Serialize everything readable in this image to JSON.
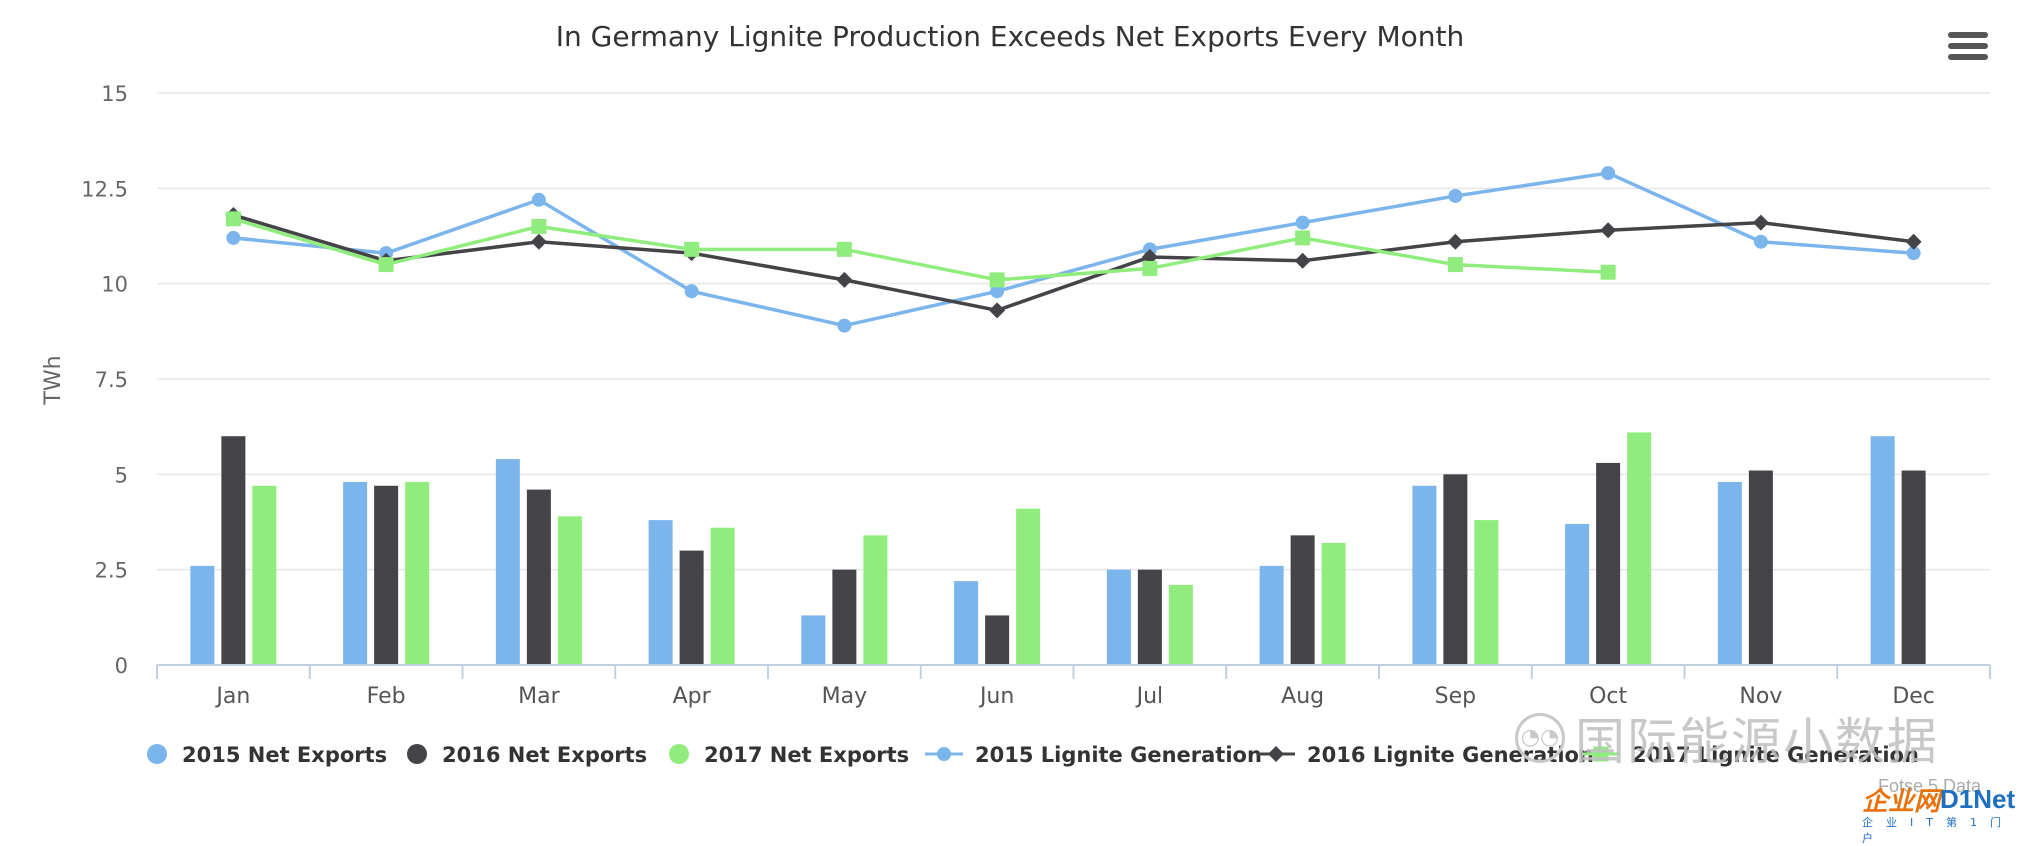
{
  "chart_data": {
    "type": "bar",
    "title": "In Germany Lignite Production Exceeds Net Exports Every Month",
    "xlabel": "",
    "ylabel": "TWh",
    "ylim": [
      0,
      15
    ],
    "yticks": [
      "0",
      "2.5",
      "5",
      "7.5",
      "10",
      "12.5",
      "15"
    ],
    "ytick_values": [
      0,
      2.5,
      5,
      7.5,
      10,
      12.5,
      15
    ],
    "categories": [
      "Jan",
      "Feb",
      "Mar",
      "Apr",
      "May",
      "Jun",
      "Jul",
      "Aug",
      "Sep",
      "Oct",
      "Nov",
      "Dec"
    ],
    "grid": true,
    "legend_position": "bottom",
    "series": [
      {
        "name": "2015 Net Exports",
        "type": "bar",
        "color": "#7cb5ec",
        "values": [
          2.6,
          4.8,
          5.4,
          3.8,
          1.3,
          2.2,
          2.5,
          2.6,
          4.7,
          3.7,
          4.8,
          6.0
        ]
      },
      {
        "name": "2016 Net Exports",
        "type": "bar",
        "color": "#434348",
        "values": [
          6.0,
          4.7,
          4.6,
          3.0,
          2.5,
          1.3,
          2.5,
          3.4,
          5.0,
          5.3,
          5.1,
          5.1
        ]
      },
      {
        "name": "2017 Net Exports",
        "type": "bar",
        "color": "#90ed7d",
        "values": [
          4.7,
          4.8,
          3.9,
          3.6,
          3.4,
          4.1,
          2.1,
          3.2,
          3.8,
          6.1,
          null,
          null
        ]
      },
      {
        "name": "2015 Lignite Generation",
        "type": "line",
        "marker": "circle",
        "color": "#7cb5ec",
        "values": [
          11.2,
          10.8,
          12.2,
          9.8,
          8.9,
          9.8,
          10.9,
          11.6,
          12.3,
          12.9,
          11.1,
          10.8
        ]
      },
      {
        "name": "2016 Lignite Generation",
        "type": "line",
        "marker": "diamond",
        "color": "#434348",
        "values": [
          11.8,
          10.6,
          11.1,
          10.8,
          10.1,
          9.3,
          10.7,
          10.6,
          11.1,
          11.4,
          11.6,
          11.1
        ]
      },
      {
        "name": "2017 Lignite Generation",
        "type": "line",
        "marker": "square",
        "color": "#90ed7d",
        "values": [
          11.7,
          10.5,
          11.5,
          10.9,
          10.9,
          10.1,
          10.4,
          11.2,
          10.5,
          10.3,
          null,
          null
        ]
      }
    ]
  },
  "watermark": {
    "icon": "wechat-icon",
    "text": "国际能源小数据"
  },
  "credit": "Fotse 5 Data",
  "logo": {
    "part_a": "企业网",
    "part_b": "D1Net",
    "sub": "企业IT第1门户"
  },
  "menu_icon": "hamburger-menu-icon"
}
